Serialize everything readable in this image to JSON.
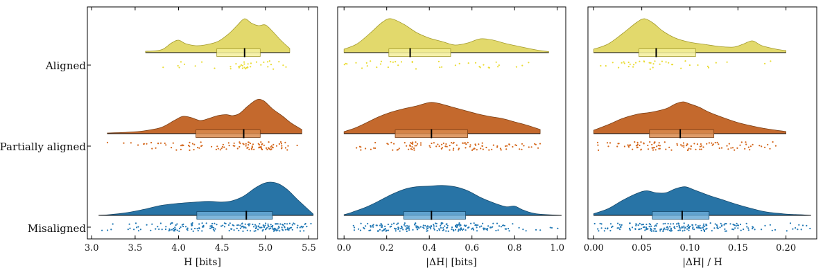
{
  "categories": [
    "Aligned",
    "Partially aligned",
    "Misaligned"
  ],
  "colors": {
    "Aligned": {
      "fill": "#e2d96c",
      "edge": "#a39a2c",
      "dot": "#eadc33",
      "box": "#f3ee9a"
    },
    "Partially aligned": {
      "fill": "#c4692d",
      "edge": "#7a3f16",
      "dot": "#d4661a",
      "box": "#d8894e"
    },
    "Misaligned": {
      "fill": "#2874a6",
      "edge": "#174a6c",
      "dot": "#1f77b4",
      "box": "#6aaad6"
    }
  },
  "chart_data": [
    {
      "type": "raincloud",
      "xlabel": "H [bits]",
      "xlim": [
        2.95,
        5.6
      ],
      "xticks": [
        3.0,
        3.5,
        4.0,
        4.5,
        5.0,
        5.5
      ],
      "xtick_labels": [
        "3.0",
        "3.5",
        "4.0",
        "4.5",
        "5.0",
        "5.5"
      ],
      "series": [
        {
          "name": "Aligned",
          "range": [
            3.62,
            5.28
          ],
          "box": {
            "q1": 4.44,
            "median": 4.76,
            "q3": 4.94
          },
          "density": [
            [
              3.62,
              0.04
            ],
            [
              3.72,
              0.05
            ],
            [
              3.82,
              0.1
            ],
            [
              3.92,
              0.28
            ],
            [
              4.0,
              0.36
            ],
            [
              4.08,
              0.26
            ],
            [
              4.2,
              0.2
            ],
            [
              4.3,
              0.22
            ],
            [
              4.45,
              0.32
            ],
            [
              4.58,
              0.55
            ],
            [
              4.68,
              0.8
            ],
            [
              4.76,
              0.98
            ],
            [
              4.84,
              0.85
            ],
            [
              4.92,
              0.78
            ],
            [
              5.0,
              0.8
            ],
            [
              5.08,
              0.62
            ],
            [
              5.18,
              0.35
            ],
            [
              5.28,
              0.12
            ]
          ]
        },
        {
          "name": "Partially aligned",
          "range": [
            3.18,
            5.42
          ],
          "box": {
            "q1": 4.2,
            "median": 4.75,
            "q3": 4.94
          },
          "density": [
            [
              3.18,
              0.02
            ],
            [
              3.4,
              0.04
            ],
            [
              3.6,
              0.08
            ],
            [
              3.8,
              0.18
            ],
            [
              3.95,
              0.38
            ],
            [
              4.05,
              0.5
            ],
            [
              4.15,
              0.46
            ],
            [
              4.25,
              0.38
            ],
            [
              4.35,
              0.44
            ],
            [
              4.45,
              0.52
            ],
            [
              4.55,
              0.55
            ],
            [
              4.62,
              0.52
            ],
            [
              4.7,
              0.58
            ],
            [
              4.8,
              0.8
            ],
            [
              4.9,
              0.98
            ],
            [
              4.98,
              0.95
            ],
            [
              5.08,
              0.72
            ],
            [
              5.2,
              0.5
            ],
            [
              5.3,
              0.3
            ],
            [
              5.42,
              0.12
            ]
          ]
        },
        {
          "name": "Misaligned",
          "range": [
            3.08,
            5.55
          ],
          "box": {
            "q1": 4.21,
            "median": 4.78,
            "q3": 5.08
          },
          "density": [
            [
              3.08,
              0.0
            ],
            [
              3.2,
              0.02
            ],
            [
              3.4,
              0.08
            ],
            [
              3.6,
              0.18
            ],
            [
              3.8,
              0.3
            ],
            [
              4.0,
              0.36
            ],
            [
              4.2,
              0.4
            ],
            [
              4.35,
              0.42
            ],
            [
              4.5,
              0.4
            ],
            [
              4.62,
              0.44
            ],
            [
              4.75,
              0.58
            ],
            [
              4.88,
              0.82
            ],
            [
              4.98,
              0.96
            ],
            [
              5.06,
              1.0
            ],
            [
              5.15,
              0.95
            ],
            [
              5.25,
              0.78
            ],
            [
              5.38,
              0.45
            ],
            [
              5.55,
              0.04
            ]
          ]
        }
      ]
    },
    {
      "type": "raincloud",
      "xlabel": "|ΔH| [bits]",
      "xlim": [
        -0.03,
        1.04
      ],
      "xticks": [
        0.0,
        0.2,
        0.4,
        0.6,
        0.8,
        1.0
      ],
      "xtick_labels": [
        "0.0",
        "0.2",
        "0.4",
        "0.6",
        "0.8",
        "1.0"
      ],
      "series": [
        {
          "name": "Aligned",
          "range": [
            0.0,
            0.96
          ],
          "box": {
            "q1": 0.21,
            "median": 0.31,
            "q3": 0.5
          },
          "density": [
            [
              0.0,
              0.1
            ],
            [
              0.06,
              0.25
            ],
            [
              0.12,
              0.55
            ],
            [
              0.18,
              0.88
            ],
            [
              0.22,
              0.98
            ],
            [
              0.28,
              0.82
            ],
            [
              0.34,
              0.58
            ],
            [
              0.4,
              0.42
            ],
            [
              0.46,
              0.32
            ],
            [
              0.52,
              0.22
            ],
            [
              0.58,
              0.28
            ],
            [
              0.64,
              0.4
            ],
            [
              0.7,
              0.36
            ],
            [
              0.76,
              0.26
            ],
            [
              0.82,
              0.18
            ],
            [
              0.9,
              0.08
            ],
            [
              0.96,
              0.03
            ]
          ]
        },
        {
          "name": "Partially aligned",
          "range": [
            0.0,
            0.92
          ],
          "box": {
            "q1": 0.24,
            "median": 0.41,
            "q3": 0.58
          },
          "density": [
            [
              0.0,
              0.06
            ],
            [
              0.05,
              0.16
            ],
            [
              0.1,
              0.3
            ],
            [
              0.16,
              0.48
            ],
            [
              0.22,
              0.62
            ],
            [
              0.28,
              0.72
            ],
            [
              0.34,
              0.8
            ],
            [
              0.4,
              0.9
            ],
            [
              0.44,
              0.88
            ],
            [
              0.5,
              0.78
            ],
            [
              0.56,
              0.68
            ],
            [
              0.62,
              0.58
            ],
            [
              0.68,
              0.5
            ],
            [
              0.74,
              0.44
            ],
            [
              0.8,
              0.34
            ],
            [
              0.86,
              0.24
            ],
            [
              0.92,
              0.12
            ]
          ]
        },
        {
          "name": "Misaligned",
          "range": [
            0.0,
            1.02
          ],
          "box": {
            "q1": 0.28,
            "median": 0.41,
            "q3": 0.57
          },
          "density": [
            [
              0.0,
              0.02
            ],
            [
              0.04,
              0.1
            ],
            [
              0.1,
              0.24
            ],
            [
              0.16,
              0.42
            ],
            [
              0.22,
              0.62
            ],
            [
              0.28,
              0.78
            ],
            [
              0.34,
              0.86
            ],
            [
              0.4,
              0.88
            ],
            [
              0.46,
              0.9
            ],
            [
              0.52,
              0.86
            ],
            [
              0.58,
              0.74
            ],
            [
              0.64,
              0.54
            ],
            [
              0.7,
              0.38
            ],
            [
              0.76,
              0.26
            ],
            [
              0.8,
              0.28
            ],
            [
              0.84,
              0.16
            ],
            [
              0.9,
              0.05
            ],
            [
              1.02,
              0.0
            ]
          ]
        }
      ]
    },
    {
      "type": "raincloud",
      "xlabel": "|ΔH| / H",
      "xlim": [
        -0.006,
        0.232
      ],
      "xticks": [
        0.0,
        0.05,
        0.1,
        0.15,
        0.2
      ],
      "xtick_labels": [
        "0.00",
        "0.05",
        "0.10",
        "0.15",
        "0.20"
      ],
      "series": [
        {
          "name": "Aligned",
          "range": [
            0.0,
            0.2
          ],
          "box": {
            "q1": 0.047,
            "median": 0.065,
            "q3": 0.106
          },
          "density": [
            [
              0.0,
              0.1
            ],
            [
              0.015,
              0.25
            ],
            [
              0.03,
              0.55
            ],
            [
              0.045,
              0.88
            ],
            [
              0.053,
              0.98
            ],
            [
              0.062,
              0.85
            ],
            [
              0.072,
              0.62
            ],
            [
              0.085,
              0.42
            ],
            [
              0.1,
              0.3
            ],
            [
              0.115,
              0.24
            ],
            [
              0.13,
              0.18
            ],
            [
              0.145,
              0.16
            ],
            [
              0.155,
              0.24
            ],
            [
              0.165,
              0.34
            ],
            [
              0.175,
              0.2
            ],
            [
              0.19,
              0.1
            ],
            [
              0.2,
              0.06
            ]
          ]
        },
        {
          "name": "Partially aligned",
          "range": [
            0.0,
            0.2
          ],
          "box": {
            "q1": 0.058,
            "median": 0.09,
            "q3": 0.125
          },
          "density": [
            [
              0.0,
              0.1
            ],
            [
              0.015,
              0.26
            ],
            [
              0.03,
              0.44
            ],
            [
              0.045,
              0.56
            ],
            [
              0.06,
              0.62
            ],
            [
              0.075,
              0.72
            ],
            [
              0.085,
              0.86
            ],
            [
              0.093,
              0.92
            ],
            [
              0.1,
              0.86
            ],
            [
              0.11,
              0.76
            ],
            [
              0.12,
              0.62
            ],
            [
              0.135,
              0.46
            ],
            [
              0.15,
              0.32
            ],
            [
              0.165,
              0.22
            ],
            [
              0.18,
              0.14
            ],
            [
              0.2,
              0.06
            ]
          ]
        },
        {
          "name": "Misaligned",
          "range": [
            0.0,
            0.226
          ],
          "box": {
            "q1": 0.061,
            "median": 0.092,
            "q3": 0.12
          },
          "density": [
            [
              0.0,
              0.05
            ],
            [
              0.015,
              0.2
            ],
            [
              0.03,
              0.45
            ],
            [
              0.045,
              0.66
            ],
            [
              0.055,
              0.74
            ],
            [
              0.065,
              0.68
            ],
            [
              0.075,
              0.68
            ],
            [
              0.085,
              0.8
            ],
            [
              0.095,
              0.86
            ],
            [
              0.105,
              0.76
            ],
            [
              0.12,
              0.6
            ],
            [
              0.135,
              0.46
            ],
            [
              0.15,
              0.32
            ],
            [
              0.165,
              0.2
            ],
            [
              0.18,
              0.1
            ],
            [
              0.2,
              0.04
            ],
            [
              0.215,
              0.02
            ],
            [
              0.226,
              0.0
            ]
          ]
        }
      ]
    }
  ]
}
